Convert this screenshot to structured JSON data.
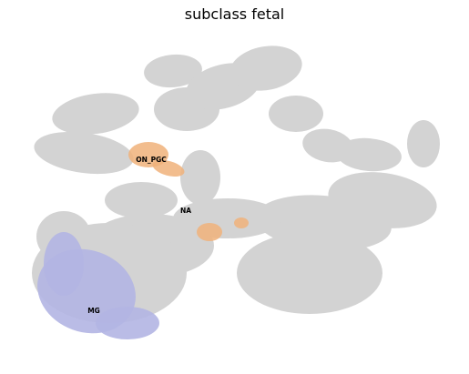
{
  "chart_data": {
    "type": "scatter",
    "title": "subclass fetal",
    "xlabel": "",
    "ylabel": "",
    "axes_visible": false,
    "grid": false,
    "legend": "none",
    "colors": {
      "background_cells": "#d3d3d3",
      "ON_PGC": "#f0b27a",
      "MG": "#b3b5e3",
      "NA": "#d3d3d3"
    },
    "clusters": [
      {
        "name": "ON_PGC",
        "label": "ON_PGC",
        "color": "#f0b27a"
      },
      {
        "name": "NA",
        "label": "NA",
        "color": "#d3d3d3"
      },
      {
        "name": "MG",
        "label": "MG",
        "color": "#b3b5e3"
      }
    ]
  }
}
